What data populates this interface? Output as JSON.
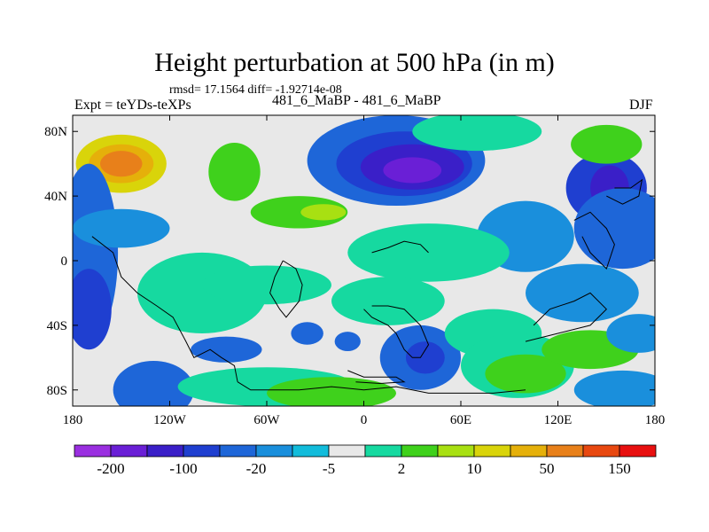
{
  "chart_data": {
    "type": "heatmap",
    "title": "Height perturbation at 500 hPa (in m)",
    "stats": "rmsd= 17.1564 diff= -1.92714e-08",
    "left_label": "Expt = teYDs-teXPs",
    "center_label": "481_6_MaBP - 481_6_MaBP",
    "right_label": "DJF",
    "xlim": [
      -180,
      180
    ],
    "ylim": [
      -90,
      90
    ],
    "x_ticks": [
      {
        "value": -180,
        "label": "180"
      },
      {
        "value": -120,
        "label": "120W"
      },
      {
        "value": -60,
        "label": "60W"
      },
      {
        "value": 0,
        "label": "0"
      },
      {
        "value": 60,
        "label": "60E"
      },
      {
        "value": 120,
        "label": "120E"
      },
      {
        "value": 180,
        "label": "180"
      }
    ],
    "y_ticks": [
      {
        "value": 80,
        "label": "80N"
      },
      {
        "value": 40,
        "label": "40N"
      },
      {
        "value": 0,
        "label": "0"
      },
      {
        "value": -40,
        "label": "40S"
      },
      {
        "value": -80,
        "label": "80S"
      }
    ],
    "colorbar": {
      "colors": [
        "#9a2fe0",
        "#6a1fd6",
        "#3a1fc8",
        "#1f3fd0",
        "#1e66d8",
        "#1a8fdc",
        "#12bcdb",
        "#e8e8e8",
        "#16d9a0",
        "#3fd11c",
        "#a8e012",
        "#d9d40a",
        "#e5b00a",
        "#e8801a",
        "#e84810",
        "#e81010"
      ],
      "labels": [
        {
          "after": 1,
          "text": "-200"
        },
        {
          "after": 3,
          "text": "-100"
        },
        {
          "after": 5,
          "text": "-20"
        },
        {
          "after": 7,
          "text": "-5"
        },
        {
          "after": 9,
          "text": "2"
        },
        {
          "after": 11,
          "text": "10"
        },
        {
          "after": 13,
          "text": "50"
        },
        {
          "after": 15,
          "text": "150"
        }
      ]
    },
    "field_blobs": [
      {
        "lon": -150,
        "lat": 60,
        "rx": 28,
        "ry": 18,
        "level": 4
      },
      {
        "lon": -150,
        "lat": 60,
        "rx": 20,
        "ry": 12,
        "level": 5
      },
      {
        "lon": -150,
        "lat": 60,
        "rx": 13,
        "ry": 8,
        "level": 6
      },
      {
        "lon": -80,
        "lat": 55,
        "rx": 16,
        "ry": 18,
        "level": 2
      },
      {
        "lon": -40,
        "lat": 30,
        "rx": 30,
        "ry": 10,
        "level": 2
      },
      {
        "lon": -25,
        "lat": 30,
        "rx": 14,
        "ry": 5,
        "level": 3
      },
      {
        "lon": 20,
        "lat": 62,
        "rx": 55,
        "ry": 28,
        "level": -3
      },
      {
        "lon": 25,
        "lat": 60,
        "rx": 42,
        "ry": 20,
        "level": -4
      },
      {
        "lon": 30,
        "lat": 58,
        "rx": 32,
        "ry": 14,
        "level": -5
      },
      {
        "lon": 30,
        "lat": 56,
        "rx": 18,
        "ry": 8,
        "level": -6
      },
      {
        "lon": 70,
        "lat": 80,
        "rx": 40,
        "ry": 12,
        "level": 1
      },
      {
        "lon": 100,
        "lat": 15,
        "rx": 30,
        "ry": 22,
        "level": -2
      },
      {
        "lon": 150,
        "lat": 45,
        "rx": 25,
        "ry": 22,
        "level": -4
      },
      {
        "lon": 152,
        "lat": 45,
        "rx": 12,
        "ry": 14,
        "level": -5
      },
      {
        "lon": 150,
        "lat": 72,
        "rx": 22,
        "ry": 12,
        "level": 2
      },
      {
        "lon": 160,
        "lat": 20,
        "rx": 30,
        "ry": 25,
        "level": -3
      },
      {
        "lon": -170,
        "lat": 5,
        "rx": 18,
        "ry": 55,
        "level": -3
      },
      {
        "lon": -170,
        "lat": -30,
        "rx": 14,
        "ry": 25,
        "level": -4
      },
      {
        "lon": -150,
        "lat": 20,
        "rx": 30,
        "ry": 12,
        "level": -2
      },
      {
        "lon": -130,
        "lat": -80,
        "rx": 25,
        "ry": 18,
        "level": -3
      },
      {
        "lon": -100,
        "lat": -20,
        "rx": 40,
        "ry": 25,
        "level": 1
      },
      {
        "lon": -60,
        "lat": -15,
        "rx": 40,
        "ry": 12,
        "level": 1
      },
      {
        "lon": -85,
        "lat": -55,
        "rx": 22,
        "ry": 8,
        "level": -3
      },
      {
        "lon": -35,
        "lat": -45,
        "rx": 10,
        "ry": 7,
        "level": -3
      },
      {
        "lon": -10,
        "lat": -50,
        "rx": 8,
        "ry": 6,
        "level": -3
      },
      {
        "lon": -60,
        "lat": -78,
        "rx": 55,
        "ry": 12,
        "level": 1
      },
      {
        "lon": -20,
        "lat": -82,
        "rx": 40,
        "ry": 10,
        "level": 2
      },
      {
        "lon": 40,
        "lat": 5,
        "rx": 50,
        "ry": 18,
        "level": 1
      },
      {
        "lon": 15,
        "lat": -25,
        "rx": 35,
        "ry": 15,
        "level": 1
      },
      {
        "lon": 35,
        "lat": -60,
        "rx": 25,
        "ry": 20,
        "level": -3
      },
      {
        "lon": 38,
        "lat": -60,
        "rx": 12,
        "ry": 10,
        "level": -4
      },
      {
        "lon": 80,
        "lat": -45,
        "rx": 30,
        "ry": 15,
        "level": 1
      },
      {
        "lon": 95,
        "lat": -65,
        "rx": 35,
        "ry": 20,
        "level": 1
      },
      {
        "lon": 100,
        "lat": -70,
        "rx": 25,
        "ry": 12,
        "level": 2
      },
      {
        "lon": 135,
        "lat": -20,
        "rx": 35,
        "ry": 18,
        "level": -2
      },
      {
        "lon": 140,
        "lat": -55,
        "rx": 30,
        "ry": 12,
        "level": 2
      },
      {
        "lon": 160,
        "lat": -80,
        "rx": 30,
        "ry": 12,
        "level": -2
      },
      {
        "lon": 170,
        "lat": -45,
        "rx": 20,
        "ry": 12,
        "level": -2
      }
    ],
    "coast_segments": [
      [
        [
          -168,
          15
        ],
        [
          -155,
          5
        ],
        [
          -150,
          -10
        ],
        [
          -140,
          -20
        ],
        [
          -128,
          -28
        ],
        [
          -118,
          -35
        ],
        [
          -110,
          -50
        ],
        [
          -105,
          -60
        ],
        [
          -95,
          -55
        ],
        [
          -88,
          -60
        ],
        [
          -80,
          -65
        ],
        [
          -78,
          -75
        ]
      ],
      [
        [
          -78,
          -75
        ],
        [
          -70,
          -80
        ],
        [
          -40,
          -80
        ],
        [
          -20,
          -78
        ],
        [
          0,
          -80
        ],
        [
          20,
          -78
        ],
        [
          40,
          -82
        ],
        [
          60,
          -82
        ],
        [
          80,
          -82
        ],
        [
          100,
          -80
        ]
      ],
      [
        [
          -50,
          0
        ],
        [
          -55,
          -10
        ],
        [
          -58,
          -20
        ],
        [
          -52,
          -30
        ],
        [
          -48,
          -35
        ],
        [
          -40,
          -25
        ],
        [
          -38,
          -15
        ],
        [
          -42,
          -5
        ],
        [
          -50,
          0
        ]
      ],
      [
        [
          0,
          -30
        ],
        [
          5,
          -35
        ],
        [
          15,
          -40
        ],
        [
          20,
          -45
        ],
        [
          25,
          -55
        ],
        [
          30,
          -60
        ],
        [
          35,
          -60
        ],
        [
          40,
          -52
        ],
        [
          35,
          -40
        ],
        [
          25,
          -30
        ],
        [
          15,
          -28
        ],
        [
          5,
          -28
        ]
      ],
      [
        [
          5,
          5
        ],
        [
          15,
          8
        ],
        [
          25,
          12
        ],
        [
          35,
          10
        ],
        [
          40,
          5
        ]
      ],
      [
        [
          100,
          -50
        ],
        [
          120,
          -45
        ],
        [
          140,
          -40
        ],
        [
          150,
          -30
        ],
        [
          140,
          -20
        ],
        [
          130,
          -25
        ],
        [
          115,
          -30
        ],
        [
          105,
          -40
        ]
      ],
      [
        [
          130,
          25
        ],
        [
          140,
          30
        ],
        [
          150,
          20
        ],
        [
          155,
          10
        ],
        [
          150,
          -5
        ],
        [
          140,
          5
        ],
        [
          135,
          15
        ]
      ],
      [
        [
          150,
          40
        ],
        [
          160,
          35
        ],
        [
          170,
          40
        ],
        [
          172,
          50
        ],
        [
          165,
          45
        ],
        [
          155,
          45
        ]
      ],
      [
        [
          -10,
          -68
        ],
        [
          0,
          -72
        ],
        [
          20,
          -72
        ],
        [
          25,
          -75
        ],
        [
          10,
          -76
        ],
        [
          -5,
          -75
        ]
      ]
    ]
  }
}
